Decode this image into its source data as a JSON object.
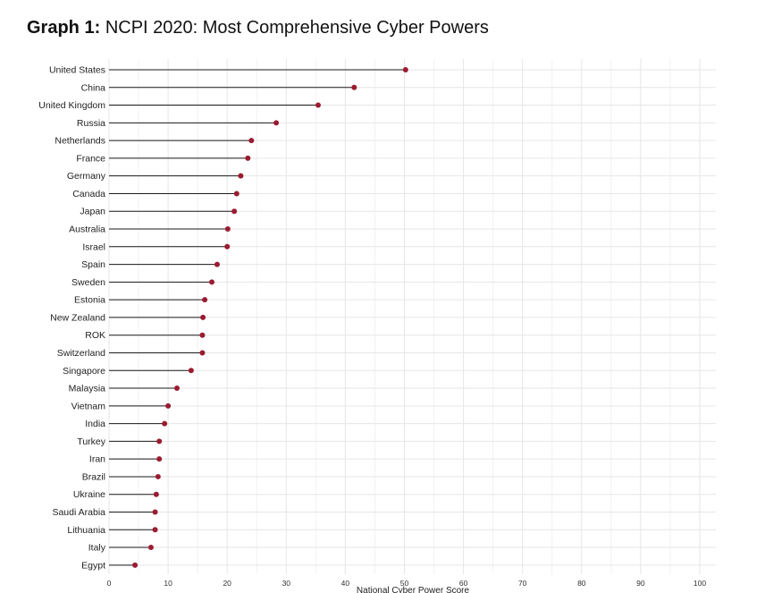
{
  "title": {
    "prefix": "Graph 1:",
    "text": "NCPI 2020: Most Comprehensive Cyber Powers"
  },
  "colors": {
    "dot": "#9b1b30",
    "stem": "#1a1a1a",
    "grid_major": "#e6e6e6",
    "grid_minor": "#f2f2f2"
  },
  "chart_data": {
    "type": "lollipop",
    "xlabel": "National Cyber Power Score",
    "xlim": [
      0,
      100
    ],
    "xticks": [
      0,
      10,
      20,
      30,
      40,
      50,
      60,
      70,
      80,
      90,
      100
    ],
    "grid": true,
    "categories": [
      "United States",
      "China",
      "United Kingdom",
      "Russia",
      "Netherlands",
      "France",
      "Germany",
      "Canada",
      "Japan",
      "Australia",
      "Israel",
      "Spain",
      "Sweden",
      "Estonia",
      "New Zealand",
      "ROK",
      "Switzerland",
      "Singapore",
      "Malaysia",
      "Vietnam",
      "India",
      "Turkey",
      "Iran",
      "Brazil",
      "Ukraine",
      "Saudi Arabia",
      "Lithuania",
      "Italy",
      "Egypt"
    ],
    "values": [
      50.2,
      41.5,
      35.4,
      28.3,
      24.1,
      23.5,
      22.3,
      21.6,
      21.2,
      20.1,
      20.0,
      18.3,
      17.4,
      16.2,
      15.9,
      15.8,
      15.8,
      13.9,
      11.5,
      10.0,
      9.4,
      8.5,
      8.5,
      8.3,
      8.0,
      7.8,
      7.8,
      7.1,
      4.4
    ]
  }
}
